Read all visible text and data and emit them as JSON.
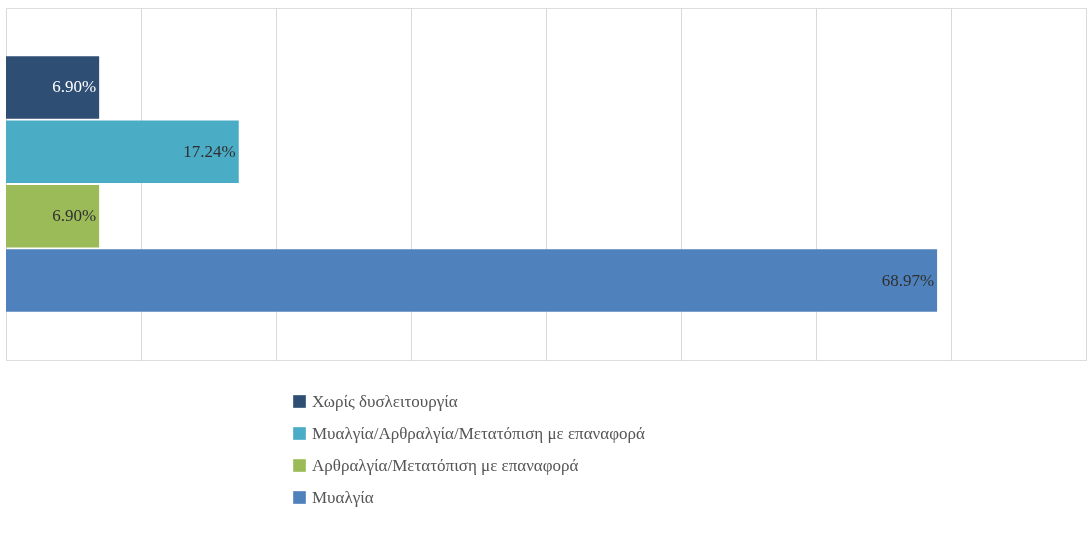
{
  "chart_data": {
    "type": "bar",
    "orientation": "horizontal",
    "categories": [
      null
    ],
    "series": [
      {
        "name": "Χωρίς δυσλειτουργία",
        "color": "#2e4e74",
        "values": [
          6.9
        ],
        "value_labels": [
          "6.90%"
        ]
      },
      {
        "name": "Μυαλγία/Αρθραλγία/Μετατόπιση με επαναφορά",
        "color": "#4bacc6",
        "values": [
          17.24
        ],
        "value_labels": [
          "17.24%"
        ]
      },
      {
        "name": "Αρθραλγία/Μετατόπιση με επαναφορά",
        "color": "#9bbb59",
        "values": [
          6.9
        ],
        "value_labels": [
          "6.90%"
        ]
      },
      {
        "name": "Μυαλγία",
        "color": "#4f81bd",
        "values": [
          68.97
        ],
        "value_labels": [
          "68.97%"
        ]
      }
    ],
    "xlim": [
      0,
      80
    ],
    "xticks": [
      0,
      10,
      20,
      30,
      40,
      50,
      60,
      70,
      80
    ],
    "tick_labels": false,
    "grid": "x",
    "legend": "bottom"
  }
}
